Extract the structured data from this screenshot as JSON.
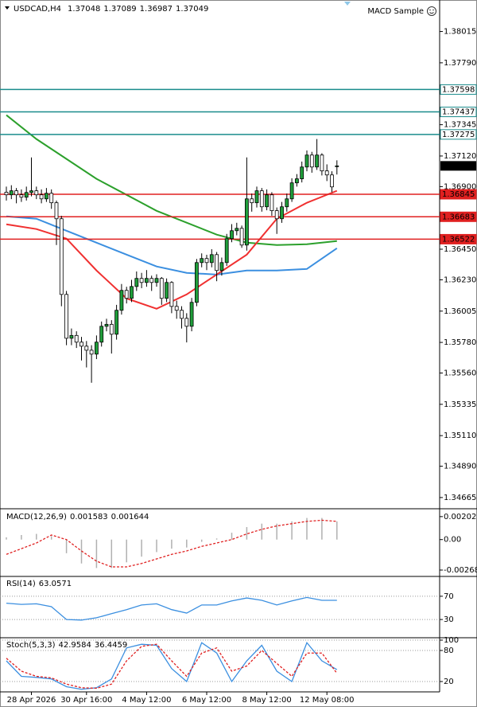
{
  "chart_data": [
    {
      "type": "candlestick",
      "title": "USDCAD,H4",
      "ohlc": [
        1.37048,
        1.37089,
        1.36987,
        1.37049
      ],
      "expert": "MACD Sample",
      "up_color": "#1f9e3a",
      "down_color": "#ffffff",
      "categories": [
        null,
        null,
        null,
        null,
        null,
        "28 Apr 2026",
        null,
        null,
        null,
        null,
        null,
        null,
        null,
        null,
        null,
        null,
        "30 Apr 16:00",
        null,
        null,
        null,
        null,
        null,
        null,
        null,
        null,
        null,
        null,
        null,
        "4 May 12:00",
        null,
        null,
        null,
        null,
        null,
        null,
        null,
        null,
        null,
        null,
        null,
        "6 May 12:00",
        null,
        null,
        null,
        null,
        null,
        null,
        null,
        null,
        null,
        null,
        null,
        "8 May 12:00",
        null,
        null,
        null,
        null,
        null,
        null,
        null,
        null,
        null,
        null,
        null,
        "12 May 08:00",
        null,
        null
      ],
      "candles": [
        [
          1.3686,
          1.369,
          1.368,
          1.36841
        ],
        [
          1.36841,
          1.3691,
          1.3681,
          1.3687
        ],
        [
          1.3687,
          1.3689,
          1.3678,
          1.36841
        ],
        [
          1.36841,
          1.3688,
          1.3679,
          1.36824
        ],
        [
          1.36824,
          1.369,
          1.368,
          1.36858
        ],
        [
          1.36858,
          1.3711,
          1.3683,
          1.3687
        ],
        [
          1.3687,
          1.369,
          1.3681,
          1.36841
        ],
        [
          1.36841,
          1.3688,
          1.3678,
          1.36812
        ],
        [
          1.36812,
          1.3689,
          1.3679,
          1.36852
        ],
        [
          1.36852,
          1.3688,
          1.3674,
          1.36784
        ],
        [
          1.36784,
          1.368,
          1.3648,
          1.36669
        ],
        [
          1.36669,
          1.3669,
          1.3604,
          1.36125
        ],
        [
          1.36125,
          1.3615,
          1.3576,
          1.3581
        ],
        [
          1.3581,
          1.3588,
          1.3576,
          1.3583
        ],
        [
          1.3583,
          1.3586,
          1.3574,
          1.35782
        ],
        [
          1.35782,
          1.3582,
          1.3565,
          1.35753
        ],
        [
          1.35753,
          1.3579,
          1.356,
          1.35724
        ],
        [
          1.35724,
          1.3576,
          1.3549,
          1.35696
        ],
        [
          1.35696,
          1.3583,
          1.3566,
          1.35782
        ],
        [
          1.35782,
          1.3593,
          1.3575,
          1.35896
        ],
        [
          1.35896,
          1.3595,
          1.3586,
          1.3591
        ],
        [
          1.3591,
          1.3594,
          1.357,
          1.35839
        ],
        [
          1.35839,
          1.3605,
          1.358,
          1.36011
        ],
        [
          1.36011,
          1.362,
          1.3598,
          1.36154
        ],
        [
          1.36154,
          1.3618,
          1.3606,
          1.36097
        ],
        [
          1.36097,
          1.3623,
          1.3607,
          1.36182
        ],
        [
          1.36182,
          1.3629,
          1.3615,
          1.3624
        ],
        [
          1.3624,
          1.3628,
          1.3617,
          1.36211
        ],
        [
          1.36211,
          1.363,
          1.3618,
          1.3624
        ],
        [
          1.3624,
          1.3626,
          1.3615,
          1.36211
        ],
        [
          1.36211,
          1.3627,
          1.3618,
          1.3624
        ],
        [
          1.3624,
          1.3625,
          1.3605,
          1.36097
        ],
        [
          1.36097,
          1.3624,
          1.3607,
          1.36211
        ],
        [
          1.36211,
          1.3622,
          1.3599,
          1.36039
        ],
        [
          1.36039,
          1.3608,
          1.3595,
          1.36011
        ],
        [
          1.36011,
          1.3604,
          1.3588,
          1.35953
        ],
        [
          1.35953,
          1.3599,
          1.3578,
          1.35896
        ],
        [
          1.35896,
          1.361,
          1.3586,
          1.36068
        ],
        [
          1.36068,
          1.3638,
          1.3604,
          1.36354
        ],
        [
          1.36354,
          1.3642,
          1.3632,
          1.36383
        ],
        [
          1.36383,
          1.3641,
          1.363,
          1.36354
        ],
        [
          1.36354,
          1.3645,
          1.3632,
          1.36411
        ],
        [
          1.36411,
          1.3643,
          1.3622,
          1.36297
        ],
        [
          1.36297,
          1.3639,
          1.3626,
          1.36354
        ],
        [
          1.36354,
          1.3656,
          1.3633,
          1.36526
        ],
        [
          1.36526,
          1.3663,
          1.365,
          1.36583
        ],
        [
          1.36583,
          1.3664,
          1.3655,
          1.366
        ],
        [
          1.366,
          1.3662,
          1.3646,
          1.3648
        ],
        [
          1.3648,
          1.3711,
          1.3644,
          1.36812
        ],
        [
          1.36812,
          1.3685,
          1.3672,
          1.36784
        ],
        [
          1.36784,
          1.369,
          1.3675,
          1.3687
        ],
        [
          1.3687,
          1.3689,
          1.3672,
          1.36755
        ],
        [
          1.36755,
          1.3688,
          1.3673,
          1.36841
        ],
        [
          1.36841,
          1.3686,
          1.3669,
          1.36727
        ],
        [
          1.36727,
          1.3675,
          1.3656,
          1.36669
        ],
        [
          1.36669,
          1.3679,
          1.3664,
          1.36755
        ],
        [
          1.36755,
          1.3685,
          1.3672,
          1.36812
        ],
        [
          1.36812,
          1.3696,
          1.3679,
          1.36927
        ],
        [
          1.36927,
          1.3699,
          1.369,
          1.36956
        ],
        [
          1.36956,
          1.3708,
          1.3693,
          1.37041
        ],
        [
          1.37041,
          1.3716,
          1.3701,
          1.37127
        ],
        [
          1.37127,
          1.3715,
          1.37,
          1.37041
        ],
        [
          1.37041,
          1.37242,
          1.3702,
          1.37127
        ],
        [
          1.37127,
          1.3714,
          1.3698,
          1.37013
        ],
        [
          1.37013,
          1.3706,
          1.3694,
          1.36984
        ],
        [
          1.36984,
          1.3701,
          1.3686,
          1.36898
        ],
        [
          1.37048,
          1.37089,
          1.36987,
          1.37049
        ]
      ],
      "series": [
        {
          "color": "#2ca02c",
          "x": [
            0,
            6,
            12,
            18,
            24,
            30,
            36,
            42,
            48,
            54,
            60,
            66
          ],
          "values": [
            1.37414,
            1.37242,
            1.37099,
            1.36956,
            1.36841,
            1.36726,
            1.36641,
            1.36555,
            1.36497,
            1.3648,
            1.36486,
            1.36509
          ]
        },
        {
          "color": "#3b8fe0",
          "x": [
            0,
            6,
            12,
            18,
            24,
            30,
            36,
            42,
            48,
            54,
            60,
            66
          ],
          "values": [
            1.36686,
            1.36669,
            1.36583,
            1.36497,
            1.36411,
            1.36326,
            1.3628,
            1.36268,
            1.36297,
            1.36297,
            1.36308,
            1.36457
          ]
        },
        {
          "color": "#f03030",
          "x": [
            0,
            6,
            12,
            18,
            24,
            30,
            36,
            42,
            48,
            54,
            60,
            66
          ],
          "values": [
            1.36629,
            1.36595,
            1.36526,
            1.36297,
            1.36096,
            1.36022,
            1.36125,
            1.36268,
            1.36411,
            1.36669,
            1.36784,
            1.3687
          ]
        }
      ],
      "hlines": [
        {
          "value": 1.37598,
          "color": "#1a8c8c"
        },
        {
          "value": 1.37437,
          "color": "#1a8c8c"
        },
        {
          "value": 1.37275,
          "color": "#1a8c8c"
        },
        {
          "value": 1.36845,
          "color": "#e02020"
        },
        {
          "value": 1.36683,
          "color": "#e02020"
        },
        {
          "value": 1.36522,
          "color": "#e02020"
        }
      ],
      "ylim": [
        1.3459,
        1.3823
      ],
      "yticks": [
        1.38015,
        {
          "value": 1.3779,
          "label": "1.37790"
        },
        1.37345,
        {
          "value": 1.3712,
          "label": "1.37120"
        },
        {
          "value": 1.369,
          "label": "1.36900"
        },
        {
          "value": 1.3645,
          "label": "1.36450"
        },
        {
          "value": 1.3623,
          "label": "1.36230"
        },
        1.36005,
        {
          "value": 1.3578,
          "label": "1.35780"
        },
        {
          "value": 1.3556,
          "label": "1.35560"
        },
        1.35335,
        {
          "value": 1.3511,
          "label": "1.35110"
        },
        {
          "value": 1.3489,
          "label": "1.34890"
        },
        1.34665
      ],
      "grid": false
    },
    {
      "type": "macd",
      "title": "MACD(12,26,9)",
      "readings": [
        0.001583,
        0.001644
      ],
      "x": [
        0,
        3,
        6,
        9,
        12,
        15,
        18,
        21,
        24,
        27,
        30,
        33,
        36,
        39,
        42,
        45,
        48,
        51,
        54,
        57,
        60,
        63,
        66
      ],
      "series": [
        {
          "color": "#b0b0b0",
          "values": [
            0.0002,
            0.0004,
            0.0005,
            0.0003,
            -0.0012,
            -0.0021,
            -0.0025,
            -0.0025,
            -0.002,
            -0.0015,
            -0.0011,
            -0.0008,
            -0.0007,
            -0.0002,
            0.0001,
            0.0006,
            0.0011,
            0.0014,
            0.0014,
            0.0016,
            0.0019,
            0.0019,
            0.0016
          ]
        },
        {
          "color": "#e02020",
          "values": [
            -0.0013,
            -0.0008,
            -0.0003,
            0.0004,
            0,
            -0.001,
            -0.0019,
            -0.0024,
            -0.0024,
            -0.0021,
            -0.0017,
            -0.0013,
            -0.001,
            -0.0006,
            -0.0003,
            0,
            0.0005,
            0.0009,
            0.0012,
            0.0014,
            0.0016,
            0.0017,
            0.0016
          ]
        }
      ],
      "ylim": [
        -0.0031,
        0.0025
      ],
      "yticks": [
        0.00202,
        {
          "value": 0,
          "label": "0.00"
        },
        -0.00268
      ]
    },
    {
      "type": "line",
      "title": "RSI(14)",
      "readings": [
        63.0571
      ],
      "x": [
        0,
        3,
        6,
        9,
        12,
        15,
        18,
        21,
        24,
        27,
        30,
        33,
        36,
        39,
        42,
        45,
        48,
        51,
        54,
        57,
        60,
        63,
        66
      ],
      "series": [
        {
          "color": "#3b8fe0",
          "values": [
            58,
            56,
            57,
            52,
            30,
            29,
            33,
            40,
            47,
            55,
            57,
            47,
            41,
            55,
            55,
            62,
            67,
            63,
            55,
            62,
            68,
            63,
            63
          ]
        }
      ],
      "ylim": [
        0,
        100
      ],
      "yticks": [
        70,
        30
      ]
    },
    {
      "type": "line",
      "title": "Stoch(5,3,3)",
      "readings": [
        42.9584,
        36.4459
      ],
      "x": [
        0,
        3,
        6,
        9,
        12,
        15,
        18,
        21,
        24,
        27,
        30,
        33,
        36,
        39,
        42,
        45,
        48,
        51,
        54,
        57,
        60,
        63,
        66
      ],
      "series": [
        {
          "color": "#3b8fe0",
          "values": [
            60,
            30,
            28,
            25,
            10,
            5,
            8,
            25,
            85,
            92,
            90,
            45,
            20,
            95,
            75,
            20,
            60,
            90,
            40,
            20,
            95,
            60,
            43
          ]
        },
        {
          "color": "#e02020",
          "dashed": true,
          "values": [
            65,
            40,
            30,
            27,
            15,
            8,
            7,
            15,
            60,
            88,
            92,
            60,
            30,
            75,
            85,
            40,
            50,
            80,
            55,
            30,
            75,
            75,
            36
          ]
        }
      ],
      "ylim": [
        0,
        100
      ],
      "yticks": [
        100,
        80,
        20
      ]
    }
  ]
}
